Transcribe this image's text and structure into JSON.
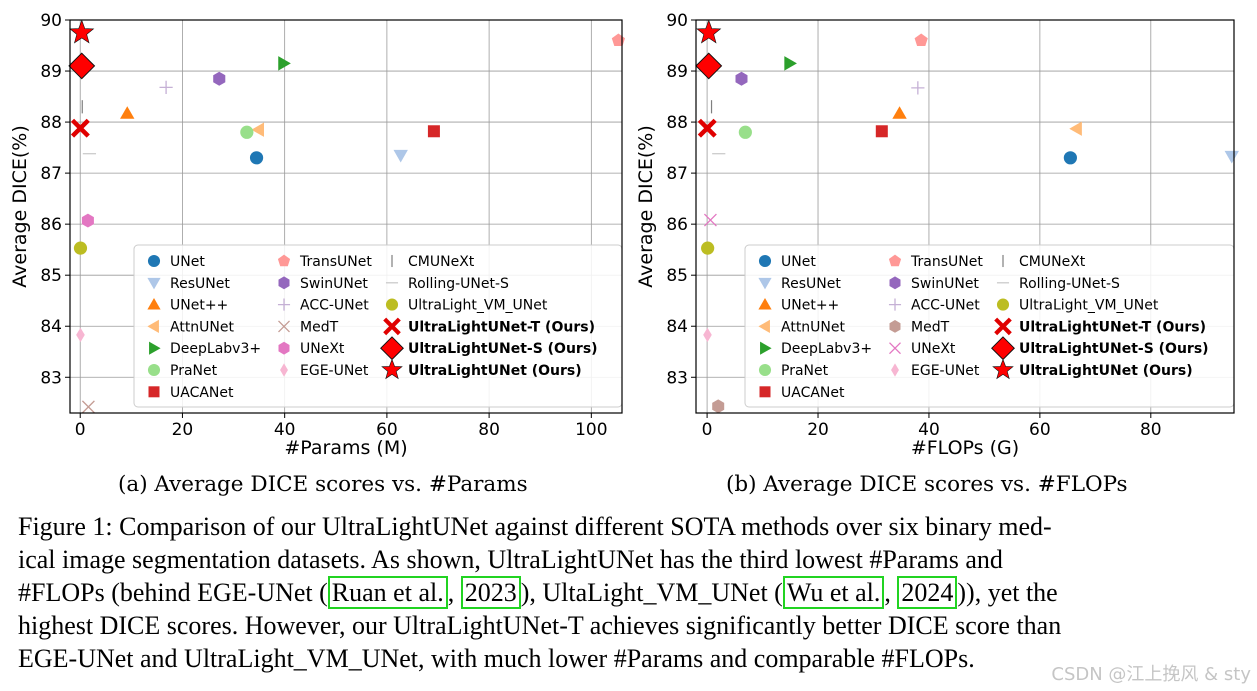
{
  "chart_data": [
    {
      "type": "scatter",
      "subcaption": "(a) Average DICE scores vs. #Params",
      "xlabel": "#Params (M)",
      "ylabel": "Average DICE(%)",
      "xlim": [
        -2,
        106
      ],
      "ylim": [
        82.3,
        90.0
      ],
      "xticks": [
        0,
        20,
        40,
        60,
        80,
        100
      ],
      "yticks": [
        83,
        84,
        85,
        86,
        87,
        88,
        89,
        90
      ],
      "grid": true,
      "legend_position": "lower-right",
      "series": [
        {
          "name": "UNet",
          "marker": "circle",
          "color": "#1f77b4",
          "x": 34.5,
          "y": 87.3
        },
        {
          "name": "ResUNet",
          "marker": "triangle-down",
          "color": "#aec7e8",
          "x": 62.7,
          "y": 87.35
        },
        {
          "name": "UNet++",
          "marker": "triangle-up",
          "color": "#ff7f0e",
          "x": 9.2,
          "y": 88.17
        },
        {
          "name": "AttnUNet",
          "marker": "triangle-left",
          "color": "#ffbb78",
          "x": 34.9,
          "y": 87.85
        },
        {
          "name": "DeepLabv3+",
          "marker": "triangle-right",
          "color": "#2ca02c",
          "x": 39.8,
          "y": 89.15
        },
        {
          "name": "PraNet",
          "marker": "circle",
          "color": "#98df8a",
          "x": 32.6,
          "y": 87.8
        },
        {
          "name": "UACANet",
          "marker": "square",
          "color": "#d62728",
          "x": 69.2,
          "y": 87.82
        },
        {
          "name": "TransUNet",
          "marker": "pentagon",
          "color": "#ff9896",
          "x": 105.3,
          "y": 89.6
        },
        {
          "name": "SwinUNet",
          "marker": "hexagon",
          "color": "#9467bd",
          "x": 27.2,
          "y": 88.85
        },
        {
          "name": "ACC-UNet",
          "marker": "plus",
          "color": "#c5b0d5",
          "x": 16.8,
          "y": 88.68
        },
        {
          "name": "MedT",
          "marker": "x",
          "color": "#c49c94",
          "x": 1.6,
          "y": 82.42
        },
        {
          "name": "UNeXt",
          "marker": "hexagon",
          "color": "#e377c2",
          "x": 1.5,
          "y": 86.07
        },
        {
          "name": "EGE-UNet",
          "marker": "thin-diamond",
          "color": "#f7b6d2",
          "x": 0.05,
          "y": 83.83
        },
        {
          "name": "CMUNeXt",
          "marker": "vline",
          "color": "#7f7f7f",
          "x": 0.4,
          "y": 88.3
        },
        {
          "name": "Rolling-UNet-S",
          "marker": "hline",
          "color": "#c7c7c7",
          "x": 1.8,
          "y": 87.38
        },
        {
          "name": "UltraLight_VM_UNet",
          "marker": "circle",
          "color": "#bcbd22",
          "x": 0.05,
          "y": 85.53
        },
        {
          "name": "UltraLightUNet-T (Ours)",
          "marker": "x-bold",
          "color": "#e00000",
          "x": 0.03,
          "y": 87.88,
          "bold": true
        },
        {
          "name": "UltraLightUNet-S (Ours)",
          "marker": "diamond",
          "color": "#ff0000",
          "x": 0.3,
          "y": 89.1,
          "bold": true
        },
        {
          "name": "UltraLightUNet (Ours)",
          "marker": "star",
          "color": "#ff0000",
          "x": 0.3,
          "y": 89.75,
          "bold": true
        }
      ]
    },
    {
      "type": "scatter",
      "subcaption": "(b) Average DICE scores vs. #FLOPs",
      "xlabel": "#FLOPs (G)",
      "ylabel": "Average DICE(%)",
      "xlim": [
        -2,
        95
      ],
      "ylim": [
        82.3,
        90.0
      ],
      "xticks": [
        0,
        20,
        40,
        60,
        80
      ],
      "yticks": [
        83,
        84,
        85,
        86,
        87,
        88,
        89,
        90
      ],
      "grid": true,
      "legend_position": "lower-right",
      "series": [
        {
          "name": "UNet",
          "marker": "circle",
          "color": "#1f77b4",
          "x": 65.5,
          "y": 87.3
        },
        {
          "name": "ResUNet",
          "marker": "triangle-down",
          "color": "#aec7e8",
          "x": 94.6,
          "y": 87.33
        },
        {
          "name": "UNet++",
          "marker": "triangle-up",
          "color": "#ff7f0e",
          "x": 34.7,
          "y": 88.17
        },
        {
          "name": "AttnUNet",
          "marker": "triangle-left",
          "color": "#ffbb78",
          "x": 66.6,
          "y": 87.87
        },
        {
          "name": "DeepLabv3+",
          "marker": "triangle-right",
          "color": "#2ca02c",
          "x": 14.9,
          "y": 89.15
        },
        {
          "name": "PraNet",
          "marker": "circle",
          "color": "#98df8a",
          "x": 6.9,
          "y": 87.8
        },
        {
          "name": "UACANet",
          "marker": "square",
          "color": "#d62728",
          "x": 31.5,
          "y": 87.82
        },
        {
          "name": "TransUNet",
          "marker": "pentagon",
          "color": "#ff9896",
          "x": 38.6,
          "y": 89.6
        },
        {
          "name": "SwinUNet",
          "marker": "hexagon",
          "color": "#9467bd",
          "x": 6.2,
          "y": 88.85
        },
        {
          "name": "ACC-UNet",
          "marker": "plus",
          "color": "#c5b0d5",
          "x": 38.0,
          "y": 88.67
        },
        {
          "name": "MedT",
          "marker": "hexagon",
          "color": "#c49c94",
          "x": 2.0,
          "y": 82.43
        },
        {
          "name": "UNeXt",
          "marker": "x",
          "color": "#e377c2",
          "x": 0.6,
          "y": 86.08
        },
        {
          "name": "EGE-UNet",
          "marker": "thin-diamond",
          "color": "#f7b6d2",
          "x": 0.07,
          "y": 83.83
        },
        {
          "name": "CMUNeXt",
          "marker": "vline",
          "color": "#7f7f7f",
          "x": 0.8,
          "y": 88.3
        },
        {
          "name": "Rolling-UNet-S",
          "marker": "hline",
          "color": "#c7c7c7",
          "x": 2.1,
          "y": 87.38
        },
        {
          "name": "UltraLight_VM_UNet",
          "marker": "circle",
          "color": "#bcbd22",
          "x": 0.1,
          "y": 85.53
        },
        {
          "name": "UltraLightUNet-T (Ours)",
          "marker": "x-bold",
          "color": "#e00000",
          "x": 0.03,
          "y": 87.88,
          "bold": true
        },
        {
          "name": "UltraLightUNet-S (Ours)",
          "marker": "diamond",
          "color": "#ff0000",
          "x": 0.3,
          "y": 89.1,
          "bold": true
        },
        {
          "name": "UltraLightUNet (Ours)",
          "marker": "star",
          "color": "#ff0000",
          "x": 0.3,
          "y": 89.75,
          "bold": true
        }
      ]
    }
  ],
  "caption": {
    "lines": [
      "Figure 1: Comparison of our UltraLightUNet against different SOTA methods over six binary med-",
      "ical image segmentation datasets.  As shown, UltraLightUNet has the third lowest #Params and"
    ],
    "line3": {
      "before": "#FLOPs (behind EGE-UNet (",
      "cite1_author": "Ruan et al.",
      "sep1": ", ",
      "cite1_year": "2023",
      "middle": "), UltaLight_VM_UNet (",
      "cite2_author": "Wu et al.",
      "sep2": ", ",
      "cite2_year": "2024",
      "after": ")), yet the"
    },
    "lines_end": [
      "highest DICE scores. However, our UltraLightUNet-T achieves significantly better DICE score than",
      "EGE-UNet and UltraLight_VM_UNet, with much lower #Params and comparable #FLOPs."
    ]
  },
  "watermark": "CSDN @江上挽风 & sty"
}
